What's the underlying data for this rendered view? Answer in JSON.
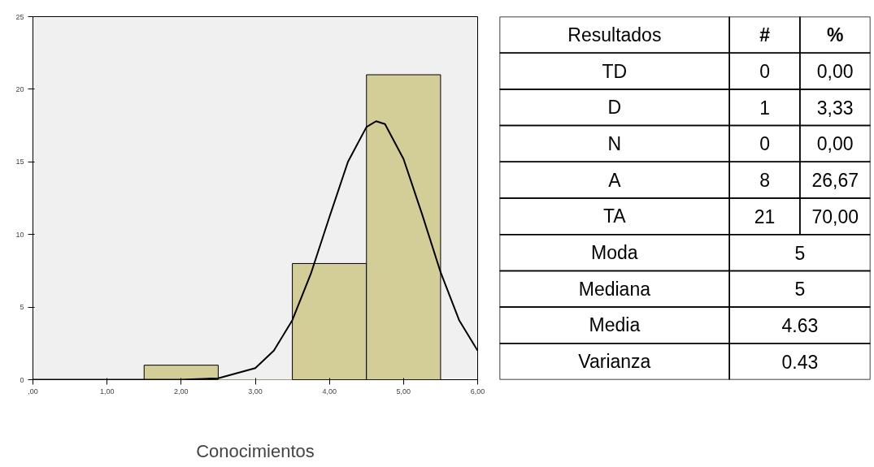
{
  "chart_data": [
    {
      "type": "histogram",
      "xlabel": "Conocimientos",
      "bins": [
        1.5,
        2.5,
        3.5,
        4.5,
        5.5
      ],
      "values": [
        1,
        0,
        8,
        21
      ],
      "color": "#d3ce97",
      "xlim": [
        0,
        6
      ],
      "ylim": [
        0,
        25
      ],
      "xticks": [
        {
          "value": 0,
          "label": ",00"
        },
        {
          "value": 1,
          "label": "1,00"
        },
        {
          "value": 2,
          "label": "2,00"
        },
        {
          "value": 3,
          "label": "3,00"
        },
        {
          "value": 4,
          "label": "4,00"
        },
        {
          "value": 5,
          "label": "5,00"
        },
        {
          "value": 6,
          "label": "6,00"
        }
      ],
      "yticks": [
        0,
        5,
        10,
        15,
        20,
        25
      ],
      "grid": false,
      "series": [
        {
          "type": "line",
          "color": "#000000",
          "x": [
            0,
            1,
            2,
            2.5,
            3,
            3.25,
            3.5,
            3.75,
            4,
            4.25,
            4.5,
            4.63,
            4.75,
            5,
            5.25,
            5.5,
            5.75,
            6
          ],
          "values": [
            0,
            0,
            0,
            0.1,
            0.8,
            2,
            4.1,
            7.3,
            11.2,
            15,
            17.4,
            17.8,
            17.6,
            15.2,
            11.4,
            7.4,
            4.1,
            2
          ]
        }
      ]
    },
    {
      "type": "other",
      "annotations": [
        "Resultados",
        "#",
        "%",
        "TD",
        "0",
        "0,00",
        "D",
        "1",
        "3,33",
        "N",
        "0",
        "0,00",
        "A",
        "8",
        "26,67",
        "TA",
        "21",
        "70,00",
        "Moda",
        "5",
        "Mediana",
        "5",
        "Media",
        "4.63",
        "Varianza",
        "0.43"
      ]
    }
  ]
}
